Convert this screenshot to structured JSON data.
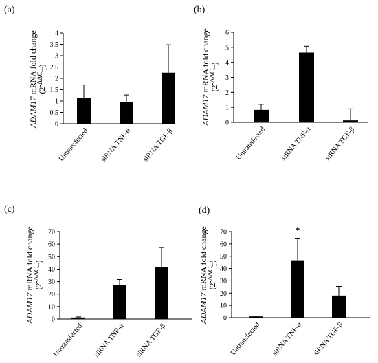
{
  "chart_data": [
    {
      "type": "bar",
      "panel_label": "(a)",
      "categories": [
        "Untransfected",
        "siRNA TNF-α",
        "siRNA TGF-β"
      ],
      "values": [
        1.13,
        0.97,
        2.25
      ],
      "errors": [
        0.58,
        0.3,
        1.23
      ],
      "ylim": [
        0,
        4
      ],
      "yticks": [
        "0",
        "0.5",
        "1",
        "1.5",
        "2",
        "2.5",
        "3",
        "3.5",
        "4"
      ],
      "ylabel_gene": "ADAM17",
      "ylabel_text": " mRNA fold change",
      "ylabel_formula": "(2",
      "ylabel_exp": "-ΔΔC",
      "ylabel_sub": "T",
      "ylabel_close": ")",
      "annotations": [
        "",
        "",
        ""
      ]
    },
    {
      "type": "bar",
      "panel_label": "(b)",
      "categories": [
        "Untransfected",
        "siRNA TNF-α",
        "siRNA TGF-β"
      ],
      "values": [
        0.83,
        4.65,
        0.13
      ],
      "errors": [
        0.37,
        0.42,
        0.77
      ],
      "ylim": [
        0,
        6
      ],
      "yticks": [
        "0",
        "1",
        "2",
        "3",
        "4",
        "5",
        "6"
      ],
      "ylabel_gene": "ADAM17",
      "ylabel_text": " mRNA fold change",
      "ylabel_formula": "(2",
      "ylabel_exp": "-ΔΔC",
      "ylabel_sub": "T",
      "ylabel_close": ")",
      "annotations": [
        "",
        "",
        ""
      ]
    },
    {
      "type": "bar",
      "panel_label": "(c)",
      "categories": [
        "Untransfected",
        "siRNA TNF-α",
        "siRNA TGF-β"
      ],
      "values": [
        1.2,
        27.2,
        41.4
      ],
      "errors": [
        0.5,
        4.5,
        16.0
      ],
      "ylim": [
        0,
        70
      ],
      "yticks": [
        "0",
        "10",
        "20",
        "30",
        "40",
        "50",
        "60",
        "70"
      ],
      "ylabel_gene": "ADAM17",
      "ylabel_text": " mRNA fold change",
      "ylabel_formula": "(2",
      "ylabel_exp": "-ΔΔC",
      "ylabel_sub": "T",
      "ylabel_close": ")",
      "annotations": [
        "",
        "",
        ""
      ]
    },
    {
      "type": "bar",
      "panel_label": "(d)",
      "categories": [
        "Untransfected",
        "siRNA TNF-α",
        "siRNA TGF-β"
      ],
      "values": [
        1.0,
        46.7,
        18.0
      ],
      "errors": [
        0.3,
        18.0,
        7.5
      ],
      "ylim": [
        0,
        70
      ],
      "yticks": [
        "0",
        "10",
        "20",
        "30",
        "40",
        "50",
        "60",
        "70"
      ],
      "ylabel_gene": "ADAM17",
      "ylabel_text": " mRNA fold change",
      "ylabel_formula": "(2",
      "ylabel_exp": "-ΔΔC",
      "ylabel_sub": "T",
      "ylabel_close": ")",
      "annotations": [
        "",
        "*",
        ""
      ]
    }
  ]
}
